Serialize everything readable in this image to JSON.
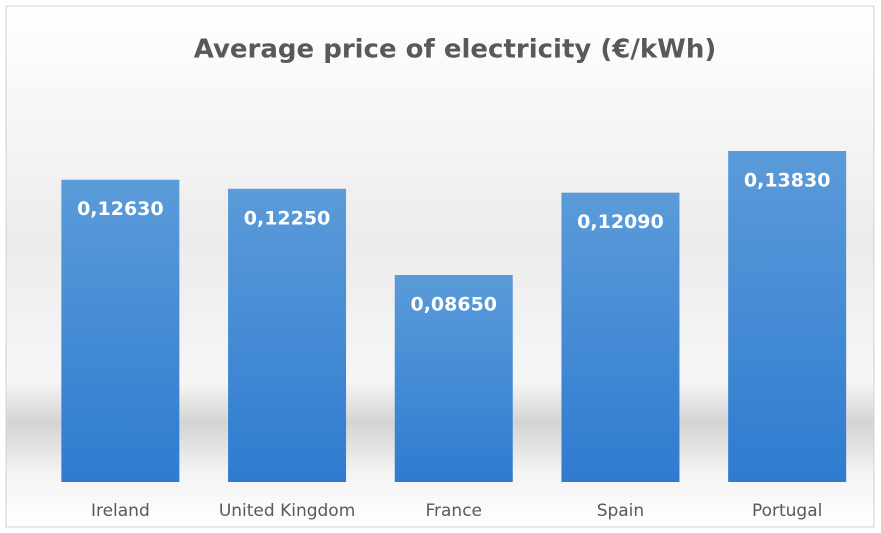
{
  "chart_data": {
    "type": "bar",
    "title": "Average price of electricity (€/kWh)",
    "categories": [
      "Ireland",
      "United Kingdom",
      "France",
      "Spain",
      "Portugal"
    ],
    "values": [
      0.1263,
      0.1225,
      0.0865,
      0.1209,
      0.1383
    ],
    "value_labels": [
      "0,12630",
      "0,12250",
      "0,08650",
      "0,12090",
      "0,13830"
    ],
    "color": "#4a8fd8"
  }
}
